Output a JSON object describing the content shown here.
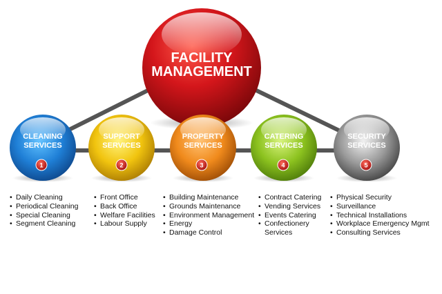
{
  "center": {
    "line1": "FACILITY",
    "line2": "MANAGEMENT"
  },
  "services": [
    {
      "line1": "CLEANING",
      "line2": "SERVICES",
      "number": "1",
      "items": [
        "Daily Cleaning",
        "Periodical Cleaning",
        "Special Cleaning",
        "Segment Cleaning"
      ]
    },
    {
      "line1": "SUPPORT",
      "line2": "SERVICES",
      "number": "2",
      "items": [
        "Front Office",
        "Back Office",
        "Welfare Facilities",
        "Labour Supply"
      ]
    },
    {
      "line1": "PROPERTY",
      "line2": "SERVICES",
      "number": "3",
      "items": [
        "Building Maintenance",
        "Grounds Maintenance",
        "Environment Management",
        "Energy",
        "Damage Control"
      ]
    },
    {
      "line1": "CATERING",
      "line2": "SERVICES",
      "number": "4",
      "items": [
        "Contract Catering",
        "Vending Services",
        "Events Catering",
        "Confectionery",
        "Services"
      ]
    },
    {
      "line1": "SECURITY",
      "line2": "SERVICES",
      "number": "5",
      "items": [
        "Physical Security",
        "Surveillance",
        "Technical Installations",
        "Workplace Emergency Mgmt",
        "Consulting Services"
      ]
    }
  ],
  "colors": {
    "center": "#d4161b",
    "cleaning": "#1f7fd6",
    "support": "#f1c40f",
    "property": "#f08a1c",
    "catering": "#8cc21f",
    "security": "#8a8a8a",
    "badge": "#d11a1a",
    "connector": "#555555"
  }
}
